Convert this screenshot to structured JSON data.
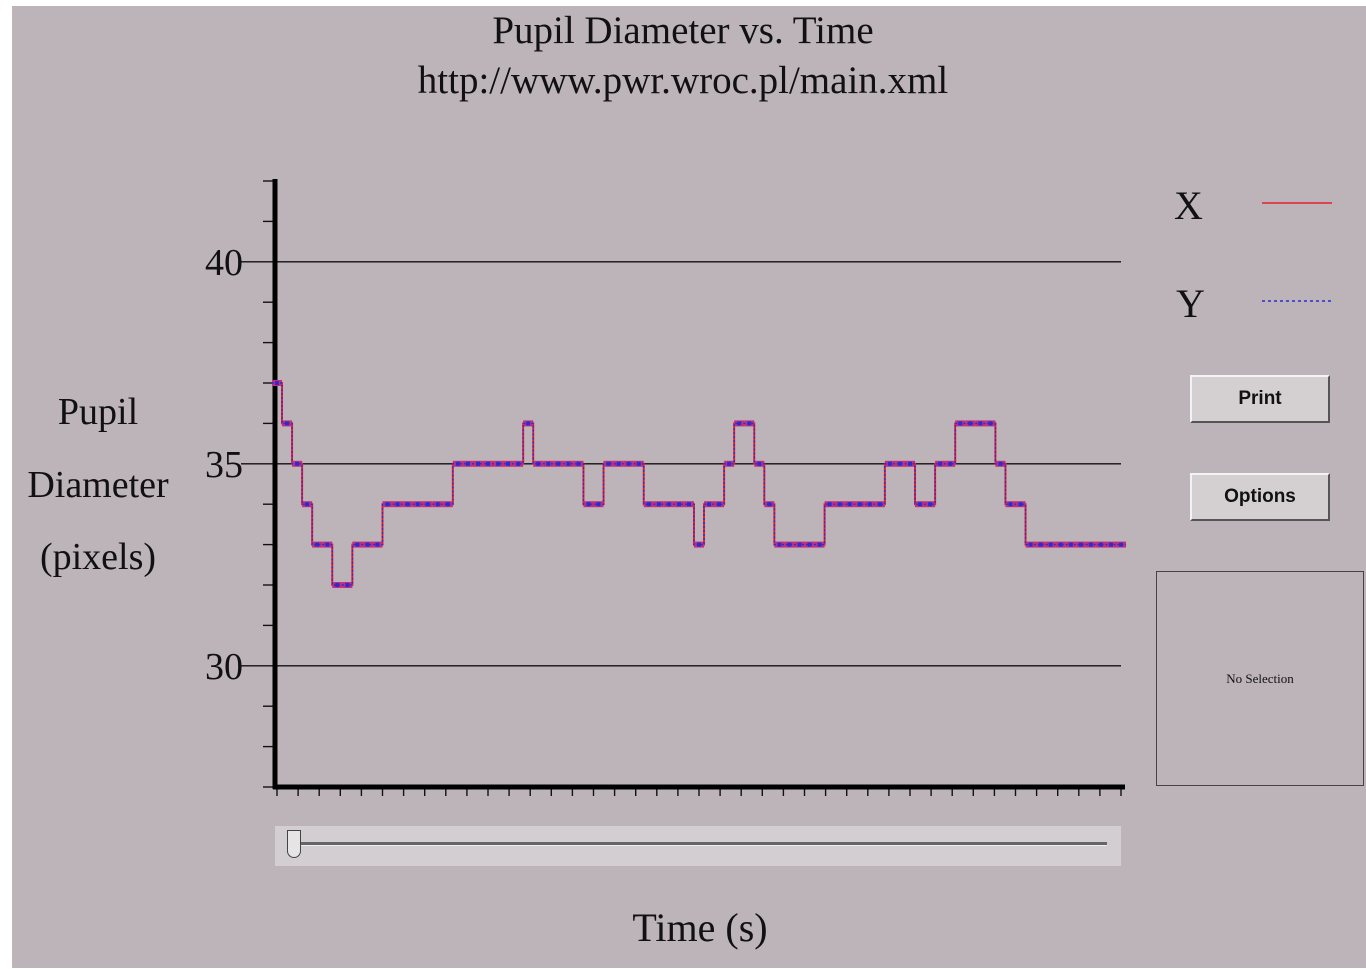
{
  "chart_data": {
    "type": "line",
    "title": "Pupil Diameter vs. Time",
    "subtitle": "http://www.pwr.wroc.pl/main.xml",
    "xlabel": "Time (s)",
    "ylabel_lines": [
      "Pupil",
      "Diameter",
      "(pixels)"
    ],
    "ylim": [
      27,
      42
    ],
    "yticks": [
      30,
      35,
      40
    ],
    "grid_y": true,
    "legend_position": "top-right",
    "x": [
      0,
      1,
      2,
      3,
      4,
      5,
      6,
      7,
      8,
      9,
      10,
      11,
      12,
      13,
      14,
      15,
      16,
      17,
      18,
      19,
      20,
      21,
      22,
      23,
      24,
      25,
      26,
      27,
      28,
      29,
      30,
      31,
      32,
      33,
      34,
      35,
      36,
      37,
      38,
      39,
      40,
      41,
      42,
      43,
      44,
      45,
      46,
      47,
      48,
      49,
      50,
      51,
      52,
      53,
      54,
      55,
      56,
      57,
      58,
      59,
      60,
      61,
      62,
      63,
      64,
      65,
      66,
      67,
      68,
      69,
      70,
      71,
      72,
      73,
      74,
      75,
      76,
      77,
      78,
      79,
      80,
      81,
      82,
      83,
      84
    ],
    "series": [
      {
        "name": "X",
        "color": "#e8202a",
        "style": "solid",
        "values": [
          37,
          36,
          35,
          34,
          33,
          33,
          32,
          32,
          33,
          33,
          33,
          34,
          34,
          34,
          34,
          34,
          34,
          34,
          35,
          35,
          35,
          35,
          35,
          35,
          35,
          36,
          35,
          35,
          35,
          35,
          35,
          34,
          34,
          35,
          35,
          35,
          35,
          34,
          34,
          34,
          34,
          34,
          33,
          34,
          34,
          35,
          36,
          36,
          35,
          34,
          33,
          33,
          33,
          33,
          33,
          34,
          34,
          34,
          34,
          34,
          34,
          35,
          35,
          35,
          34,
          34,
          35,
          35,
          36,
          36,
          36,
          36,
          35,
          34,
          34,
          33,
          33,
          33,
          33,
          33,
          33,
          33,
          33,
          33,
          33
        ]
      },
      {
        "name": "Y",
        "color": "#2b2bd6",
        "style": "dotted",
        "values": [
          37,
          36,
          35,
          34,
          33,
          33,
          32,
          32,
          33,
          33,
          33,
          34,
          34,
          34,
          34,
          34,
          34,
          34,
          35,
          35,
          35,
          35,
          35,
          35,
          35,
          36,
          35,
          35,
          35,
          35,
          35,
          34,
          34,
          35,
          35,
          35,
          35,
          34,
          34,
          34,
          34,
          34,
          33,
          34,
          34,
          35,
          36,
          36,
          35,
          34,
          33,
          33,
          33,
          33,
          33,
          34,
          34,
          34,
          34,
          34,
          34,
          35,
          35,
          35,
          34,
          34,
          35,
          35,
          36,
          36,
          36,
          36,
          35,
          34,
          34,
          33,
          33,
          33,
          33,
          33,
          33,
          33,
          33,
          33,
          33
        ]
      }
    ]
  },
  "controls": {
    "print_label": "Print",
    "options_label": "Options",
    "selection_text": "No Selection"
  },
  "slider": {
    "value": 0
  }
}
